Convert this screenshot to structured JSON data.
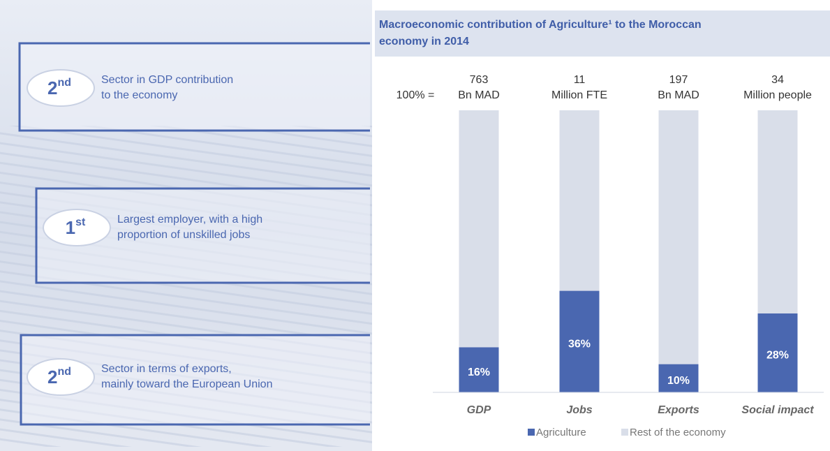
{
  "highlights": [
    {
      "rank": "2",
      "rank_suffix": "nd",
      "text_lines": [
        "Sector in GDP contribution",
        "to the economy"
      ]
    },
    {
      "rank": "1",
      "rank_suffix": "st",
      "text_lines": [
        "Largest employer, with a high",
        "proportion of unskilled jobs"
      ]
    },
    {
      "rank": "2",
      "rank_suffix": "nd",
      "text_lines": [
        "Sector in terms of exports,",
        "mainly toward the European Union"
      ]
    }
  ],
  "chart_data": {
    "type": "stacked_percent_bar",
    "title_lines": [
      "Macroeconomic contribution of Agriculture¹ to the Moroccan",
      "economy in 2014"
    ],
    "total_prefix": "100% =",
    "totals": [
      {
        "value": 763,
        "unit": "Bn MAD"
      },
      {
        "value": 11,
        "unit": "Million FTE"
      },
      {
        "value": 197,
        "unit": "Bn MAD"
      },
      {
        "value": 34,
        "unit": "Million people"
      }
    ],
    "categories": [
      "GDP",
      "Jobs",
      "Exports",
      "Social impact"
    ],
    "series": [
      {
        "name": "Agriculture",
        "color": "#4a67b0",
        "values": [
          16,
          36,
          10,
          28
        ],
        "value_labels": [
          "16%",
          "36%",
          "10%",
          "28%"
        ]
      },
      {
        "name": "Rest of the economy",
        "color": "#d9dee9",
        "values": [
          84,
          64,
          90,
          72
        ]
      }
    ],
    "legend": "bottom"
  }
}
